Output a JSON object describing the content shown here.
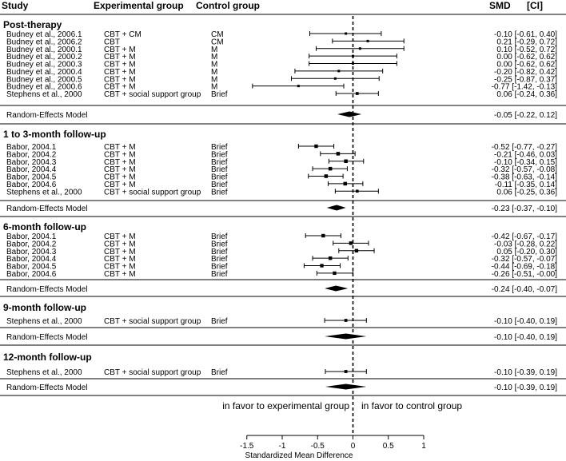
{
  "chart_data": {
    "type": "forest",
    "headers": {
      "study": "Study",
      "experimental": "Experimental group",
      "control": "Control group",
      "smd": "SMD",
      "ci": "[CI]"
    },
    "xlabel": "Standardized Mean Difference",
    "xlim": [
      -1.5,
      1
    ],
    "xticks": [
      -1.5,
      -1,
      -0.5,
      0,
      0.5,
      1
    ],
    "xtick_labels": [
      "-1.5",
      "-1",
      "-0.5",
      "0",
      "0.5",
      "1"
    ],
    "favor_left": "in favor to experimental group",
    "favor_right": "in favor to control group",
    "sections": [
      {
        "title": "Post-therapy",
        "studies": [
          {
            "study": "Budney et al., 2006.1",
            "exp": "CBT + CM",
            "ctrl": "CM",
            "smd": -0.1,
            "lo": -0.61,
            "hi": 0.4,
            "text": "-0.10 [-0.61,  0.40]"
          },
          {
            "study": "Budney et al., 2006.2",
            "exp": "CBT",
            "ctrl": "CM",
            "smd": 0.21,
            "lo": -0.29,
            "hi": 0.72,
            "text": "0.21 [-0.29,  0.72]"
          },
          {
            "study": "Budney et al., 2000.1",
            "exp": "CBT + M",
            "ctrl": "M",
            "smd": 0.1,
            "lo": -0.52,
            "hi": 0.72,
            "text": "0.10 [-0.52,  0.72]"
          },
          {
            "study": "Budney et al., 2000.2",
            "exp": "CBT + M",
            "ctrl": "M",
            "smd": 0.0,
            "lo": -0.62,
            "hi": 0.62,
            "text": "0.00 [-0.62,  0.62]"
          },
          {
            "study": "Budney et al., 2000.3",
            "exp": "CBT + M",
            "ctrl": "M",
            "smd": 0.0,
            "lo": -0.62,
            "hi": 0.62,
            "text": "0.00 [-0.62,  0.62]"
          },
          {
            "study": "Budney et al., 2000.4",
            "exp": "CBT + M",
            "ctrl": "M",
            "smd": -0.2,
            "lo": -0.82,
            "hi": 0.42,
            "text": "-0.20 [-0.82,  0.42]"
          },
          {
            "study": "Budney et al., 2000.5",
            "exp": "CBT + M",
            "ctrl": "M",
            "smd": -0.25,
            "lo": -0.87,
            "hi": 0.37,
            "text": "-0.25 [-0.87,  0.37]"
          },
          {
            "study": "Budney et al., 2000.6",
            "exp": "CBT + M",
            "ctrl": "M",
            "smd": -0.77,
            "lo": -1.42,
            "hi": -0.13,
            "text": "-0.77 [-1.42, -0.13]"
          },
          {
            "study": "Stephens et al., 2000",
            "exp": "CBT + social support group",
            "ctrl": "Brief",
            "smd": 0.06,
            "lo": -0.24,
            "hi": 0.36,
            "text": "0.06 [-0.24,  0.36]"
          }
        ],
        "pooled": {
          "label": "Random-Effects Model",
          "smd": -0.05,
          "lo": -0.22,
          "hi": 0.12,
          "text": "-0.05 [-0.22,  0.12]"
        }
      },
      {
        "title": "1 to 3-month follow-up",
        "studies": [
          {
            "study": "Babor, 2004.1",
            "exp": "CBT + M",
            "ctrl": "Brief",
            "smd": -0.52,
            "lo": -0.77,
            "hi": -0.27,
            "text": "-0.52 [-0.77, -0.27]"
          },
          {
            "study": "Babor, 2004.2",
            "exp": "CBT + M",
            "ctrl": "Brief",
            "smd": -0.21,
            "lo": -0.46,
            "hi": 0.03,
            "text": "-0.21 [-0.46,  0.03]"
          },
          {
            "study": "Babor, 2004.3",
            "exp": "CBT + M",
            "ctrl": "Brief",
            "smd": -0.1,
            "lo": -0.34,
            "hi": 0.15,
            "text": "-0.10 [-0.34,  0.15]"
          },
          {
            "study": "Babor, 2004.4",
            "exp": "CBT + M",
            "ctrl": "Brief",
            "smd": -0.32,
            "lo": -0.57,
            "hi": -0.08,
            "text": "-0.32 [-0.57, -0.08]"
          },
          {
            "study": "Babor, 2004.5",
            "exp": "CBT + M",
            "ctrl": "Brief",
            "smd": -0.38,
            "lo": -0.63,
            "hi": -0.14,
            "text": "-0.38 [-0.63, -0.14]"
          },
          {
            "study": "Babor, 2004.6",
            "exp": "CBT + M",
            "ctrl": "Brief",
            "smd": -0.11,
            "lo": -0.35,
            "hi": 0.14,
            "text": "-0.11 [-0.35,  0.14]"
          },
          {
            "study": "Stephens et al., 2000",
            "exp": "CBT + social support group",
            "ctrl": "Brief",
            "smd": 0.06,
            "lo": -0.25,
            "hi": 0.36,
            "text": "0.06 [-0.25,  0.36]"
          }
        ],
        "pooled": {
          "label": "Random-Effects Model",
          "smd": -0.23,
          "lo": -0.37,
          "hi": -0.1,
          "text": "-0.23 [-0.37, -0.10]"
        }
      },
      {
        "title": "6-month follow-up",
        "studies": [
          {
            "study": "Babor, 2004.1",
            "exp": "CBT + M",
            "ctrl": "Brief",
            "smd": -0.42,
            "lo": -0.67,
            "hi": -0.17,
            "text": "-0.42 [-0.67, -0.17]"
          },
          {
            "study": "Babor, 2004.2",
            "exp": "CBT + M",
            "ctrl": "Brief",
            "smd": -0.03,
            "lo": -0.28,
            "hi": 0.22,
            "text": "-0.03 [-0.28,  0.22]"
          },
          {
            "study": "Babor, 2004.3",
            "exp": "CBT + M",
            "ctrl": "Brief",
            "smd": 0.05,
            "lo": -0.2,
            "hi": 0.3,
            "text": "0.05 [-0.20,  0.30]"
          },
          {
            "study": "Babor, 2004.4",
            "exp": "CBT + M",
            "ctrl": "Brief",
            "smd": -0.32,
            "lo": -0.57,
            "hi": -0.07,
            "text": "-0.32 [-0.57, -0.07]"
          },
          {
            "study": "Babor, 2004.5",
            "exp": "CBT + M",
            "ctrl": "Brief",
            "smd": -0.44,
            "lo": -0.69,
            "hi": -0.18,
            "text": "-0.44 [-0.69, -0.18]"
          },
          {
            "study": "Babor, 2004.6",
            "exp": "CBT + M",
            "ctrl": "Brief",
            "smd": -0.26,
            "lo": -0.51,
            "hi": -0.0,
            "text": "-0.26 [-0.51, -0.00]"
          }
        ],
        "pooled": {
          "label": "Random-Effects Model",
          "smd": -0.24,
          "lo": -0.4,
          "hi": -0.07,
          "text": "-0.24 [-0.40, -0.07]"
        }
      },
      {
        "title": "9-month follow-up",
        "studies": [
          {
            "study": "Stephens et al., 2000",
            "exp": "CBT + social support group",
            "ctrl": "Brief",
            "smd": -0.1,
            "lo": -0.4,
            "hi": 0.19,
            "text": "-0.10 [-0.40,  0.19]"
          }
        ],
        "pooled": {
          "label": "Random-Effects Model",
          "smd": -0.1,
          "lo": -0.4,
          "hi": 0.19,
          "text": "-0.10 [-0.40,  0.19]"
        }
      },
      {
        "title": "12-month follow-up",
        "studies": [
          {
            "study": "Stephens et al., 2000",
            "exp": "CBT + social support group",
            "ctrl": "Brief",
            "smd": -0.1,
            "lo": -0.39,
            "hi": 0.19,
            "text": "-0.10 [-0.39,  0.19]"
          }
        ],
        "pooled": {
          "label": "Random-Effects Model",
          "smd": -0.1,
          "lo": -0.39,
          "hi": 0.19,
          "text": "-0.10 [-0.39,  0.19]"
        }
      }
    ]
  }
}
